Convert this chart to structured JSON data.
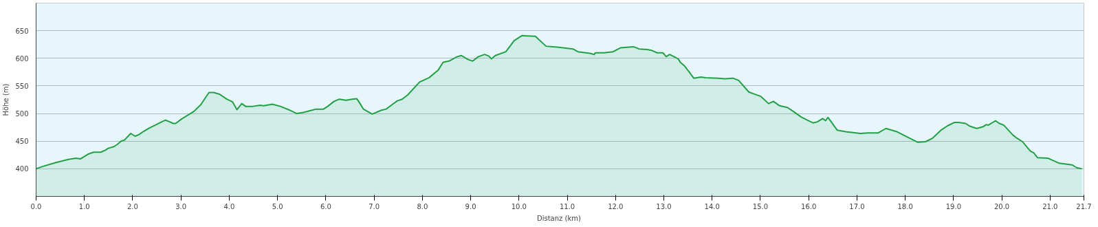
{
  "chart_data": {
    "type": "area",
    "xlabel": "Distanz  (km)",
    "ylabel": "Höhe (m)",
    "xlim": [
      0,
      21.7
    ],
    "ylim": [
      350,
      700
    ],
    "xticks": [
      {
        "value": 0,
        "label": "0.0"
      },
      {
        "value": 1,
        "label": "1.0"
      },
      {
        "value": 2,
        "label": "2.0"
      },
      {
        "value": 3,
        "label": "3.0"
      },
      {
        "value": 4,
        "label": "4.0"
      },
      {
        "value": 5,
        "label": "5.0"
      },
      {
        "value": 6,
        "label": "6.0"
      },
      {
        "value": 7,
        "label": "7.0"
      },
      {
        "value": 8,
        "label": "8.0"
      },
      {
        "value": 9,
        "label": "9.0"
      },
      {
        "value": 10,
        "label": "10.0"
      },
      {
        "value": 11,
        "label": "11.0"
      },
      {
        "value": 12,
        "label": "12.0"
      },
      {
        "value": 13,
        "label": "13.0"
      },
      {
        "value": 14,
        "label": "14.0"
      },
      {
        "value": 15,
        "label": "15.0"
      },
      {
        "value": 16,
        "label": "16.0"
      },
      {
        "value": 17,
        "label": "17.0"
      },
      {
        "value": 18,
        "label": "18.0"
      },
      {
        "value": 19,
        "label": "19.0"
      },
      {
        "value": 20,
        "label": "20.0"
      },
      {
        "value": 21,
        "label": "21.0"
      },
      {
        "value": 21.7,
        "label": "21.7"
      }
    ],
    "yticks": [
      400,
      450,
      500,
      550,
      600,
      650
    ],
    "grid": "y",
    "marker": "none",
    "line_style": "solid",
    "series": [
      {
        "color": "#22a045",
        "x": [
          0,
          0.13,
          0.4,
          0.67,
          0.82,
          0.92,
          1.09,
          1.19,
          1.34,
          1.44,
          1.49,
          1.61,
          1.68,
          1.76,
          1.83,
          1.96,
          2.05,
          2.13,
          2.23,
          2.35,
          2.47,
          2.6,
          2.68,
          2.77,
          2.84,
          2.89,
          3.01,
          3.27,
          3.41,
          3.58,
          3.68,
          3.8,
          3.95,
          4.07,
          4.16,
          4.26,
          4.34,
          4.49,
          4.64,
          4.71,
          4.89,
          5.06,
          5.23,
          5.4,
          5.53,
          5.67,
          5.8,
          5.95,
          6.04,
          6.17,
          6.28,
          6.42,
          6.54,
          6.64,
          6.71,
          6.78,
          6.96,
          7.15,
          7.25,
          7.37,
          7.48,
          7.58,
          7.7,
          7.94,
          8.14,
          8.33,
          8.43,
          8.55,
          8.72,
          8.81,
          8.94,
          9.04,
          9.16,
          9.29,
          9.38,
          9.43,
          9.51,
          9.73,
          9.9,
          10.06,
          10.34,
          10.56,
          10.83,
          11.12,
          11.22,
          11.47,
          11.56,
          11.58,
          11.76,
          11.95,
          12.1,
          12.37,
          12.49,
          12.66,
          12.76,
          12.86,
          12.98,
          13.05,
          13.12,
          13.3,
          13.34,
          13.42,
          13.52,
          13.62,
          13.77,
          13.86,
          14.13,
          14.26,
          14.43,
          14.55,
          14.76,
          14.85,
          15.01,
          15.17,
          15.27,
          15.4,
          15.56,
          15.68,
          15.84,
          15.95,
          16.09,
          16.18,
          16.29,
          16.35,
          16.4,
          16.59,
          16.77,
          17.07,
          17.23,
          17.44,
          17.6,
          17.83,
          18.26,
          18.42,
          18.56,
          18.74,
          18.88,
          19.02,
          19.11,
          19.25,
          19.34,
          19.48,
          19.61,
          19.68,
          19.72,
          19.87,
          19.95,
          20.04,
          20.23,
          20.32,
          20.43,
          20.59,
          20.66,
          20.74,
          20.96,
          21.19,
          21.46,
          21.55,
          21.66
        ],
        "values": [
          400,
          404,
          411,
          417,
          419,
          418,
          427,
          430,
          430,
          434,
          437,
          440,
          444,
          450,
          452,
          464,
          459,
          462,
          468,
          474,
          479,
          485,
          488,
          485,
          482,
          482,
          490,
          504,
          516,
          538,
          538,
          535,
          526,
          521,
          507,
          518,
          513,
          513,
          515,
          514,
          517,
          513,
          507,
          500,
          502,
          505,
          508,
          508,
          513,
          522,
          526,
          524,
          526,
          527,
          518,
          508,
          499,
          506,
          508,
          516,
          523,
          526,
          534,
          557,
          565,
          579,
          593,
          595,
          603,
          605,
          598,
          595,
          603,
          607,
          604,
          599,
          605,
          612,
          632,
          641,
          640,
          622,
          620,
          617,
          612,
          609,
          607,
          610,
          610,
          612,
          619,
          621,
          617,
          616,
          614,
          610,
          610,
          603,
          607,
          599,
          593,
          587,
          576,
          564,
          566,
          565,
          564,
          563,
          564,
          560,
          539,
          536,
          531,
          518,
          522,
          514,
          511,
          504,
          494,
          489,
          483,
          485,
          491,
          487,
          493,
          470,
          467,
          464,
          465,
          465,
          473,
          467,
          448,
          449,
          455,
          470,
          478,
          484,
          484,
          482,
          477,
          473,
          476,
          480,
          479,
          487,
          482,
          479,
          461,
          455,
          449,
          432,
          429,
          420,
          419,
          410,
          407,
          402,
          400
        ]
      }
    ]
  }
}
